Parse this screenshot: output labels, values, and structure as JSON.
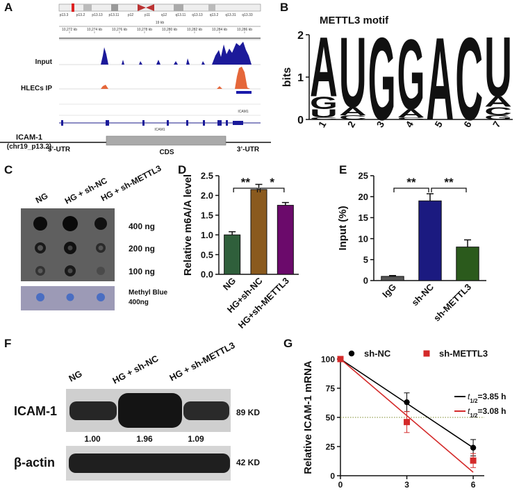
{
  "panels": {
    "A": {
      "label": "A",
      "bands": [
        "p13.3",
        "p13.2",
        "p13.13",
        "p13.11",
        "p12",
        "p11",
        "q12",
        "q13.11",
        "q13.13",
        "q13.2",
        "q13.31",
        "q13.33"
      ],
      "scale": "19 kb",
      "coords": [
        "10,272 kb",
        "10,274 kb",
        "10,276 kb",
        "10,278 kb",
        "10,280 kb",
        "10,282 kb",
        "10,284 kb",
        "10,286 kb"
      ],
      "tracks": [
        "Input",
        "HLECs IP"
      ],
      "gene_names": [
        "ICAM1",
        "ICAM1"
      ],
      "gene": "ICAM-1",
      "locus": "(chr19_p13.2)",
      "regions": [
        "5’-UTR",
        "CDS",
        "3’-UTR"
      ]
    },
    "C": {
      "label": "C",
      "columns": [
        "NG",
        "HG + sh-NC",
        "HG + sh-METTL3"
      ],
      "rows": [
        "400 ng",
        "200 ng",
        "100 ng"
      ],
      "stain": "Methyl Blue",
      "stain_amount": "400ng"
    },
    "F": {
      "label": "F",
      "columns": [
        "NG",
        "HG + sh-NC",
        "HG + sh-METTL3"
      ],
      "proteins": [
        "ICAM-1",
        "β-actin"
      ],
      "sizes": [
        "89 KD",
        "42 KD"
      ],
      "ratios": [
        "1.00",
        "1.96",
        "1.09"
      ]
    }
  },
  "chart_data": [
    {
      "type": "logo",
      "panel_label": "B",
      "title": "METTL3 motif",
      "ylabel": "bits",
      "ylim": [
        0,
        2
      ],
      "yticks": [
        0,
        1,
        2
      ],
      "categories": [
        "1",
        "2",
        "3",
        "4",
        "5",
        "6",
        "7"
      ],
      "colors": {
        "A": "#55a630",
        "U": "#a3201c",
        "G": "#efa12c",
        "C": "#1c3dc4"
      },
      "stacks": [
        [
          {
            "letter": "C",
            "height": 0.05
          },
          {
            "letter": "U",
            "height": 0.2
          },
          {
            "letter": "G",
            "height": 0.3
          },
          {
            "letter": "A",
            "height": 1.45
          }
        ],
        [
          {
            "letter": "C",
            "height": 0.1
          },
          {
            "letter": "A",
            "height": 0.2
          },
          {
            "letter": "U",
            "height": 1.7
          }
        ],
        [
          {
            "letter": "G",
            "height": 2.0
          }
        ],
        [
          {
            "letter": "C",
            "height": 0.05
          },
          {
            "letter": "A",
            "height": 0.2
          },
          {
            "letter": "G",
            "height": 1.7
          }
        ],
        [
          {
            "letter": "A",
            "height": 2.0
          }
        ],
        [
          {
            "letter": "C",
            "height": 2.0
          }
        ],
        [
          {
            "letter": "G",
            "height": 0.1
          },
          {
            "letter": "C",
            "height": 0.2
          },
          {
            "letter": "A",
            "height": 0.25
          },
          {
            "letter": "U",
            "height": 1.45
          }
        ]
      ]
    },
    {
      "type": "bar",
      "panel_label": "D",
      "ylabel": "Relative m6A/A level",
      "categories": [
        "NG",
        "HG+sh-NC",
        "HG+sh-METTL3"
      ],
      "values": [
        1.0,
        2.15,
        1.75
      ],
      "errors": [
        0.08,
        0.13,
        0.07
      ],
      "colors": [
        "#2f5f3b",
        "#8a5a1e",
        "#6b0a6b"
      ],
      "ylim": [
        0,
        2.5
      ],
      "yticks": [
        {
          "value": 0,
          "label": "0.0"
        },
        0.5,
        {
          "value": 1,
          "label": "1.0"
        },
        1.5,
        {
          "value": 2,
          "label": "2.0"
        },
        2.5
      ],
      "annotations": [
        "**",
        "*"
      ]
    },
    {
      "type": "bar",
      "panel_label": "E",
      "ylabel": "Input (%)",
      "categories": [
        "IgG",
        "sh-NC",
        "sh-METTL3"
      ],
      "values": [
        1.0,
        19.0,
        8.0
      ],
      "errors": [
        0.2,
        1.7,
        1.7
      ],
      "colors": [
        "#555555",
        "#1b1a80",
        "#2b5a1c"
      ],
      "ylim": [
        0,
        25
      ],
      "yticks": [
        0,
        5,
        10,
        15,
        20,
        25
      ],
      "annotations": [
        "**",
        "**"
      ]
    },
    {
      "type": "line",
      "panel_label": "G",
      "ylabel": "Relative ICAM-1 mRNA",
      "x": [
        0,
        3,
        6
      ],
      "xlim": [
        0,
        6.5
      ],
      "xticks": [
        0,
        3,
        6
      ],
      "ylim": [
        0,
        100
      ],
      "yticks": [
        0,
        25,
        50,
        75,
        100
      ],
      "reference_line": 50,
      "reference_color": "#7d8a2a",
      "fit_x": [
        0,
        6
      ],
      "series": [
        {
          "name": "sh-NC",
          "color": "#000000",
          "marker": "circle",
          "values": [
            100,
            63,
            24
          ],
          "errors": [
            0,
            8,
            7
          ],
          "fit": [
            100,
            24
          ],
          "half_life_label": [
            "t",
            "1/2",
            "=3.85 h"
          ]
        },
        {
          "name": "sh-METTL3",
          "color": "#d42a2a",
          "marker": "square",
          "values": [
            100,
            46,
            13
          ],
          "errors": [
            0,
            9,
            6
          ],
          "fit": [
            100,
            3
          ],
          "half_life_label": [
            "t",
            "1/2",
            "=3.08 h"
          ]
        }
      ]
    }
  ]
}
